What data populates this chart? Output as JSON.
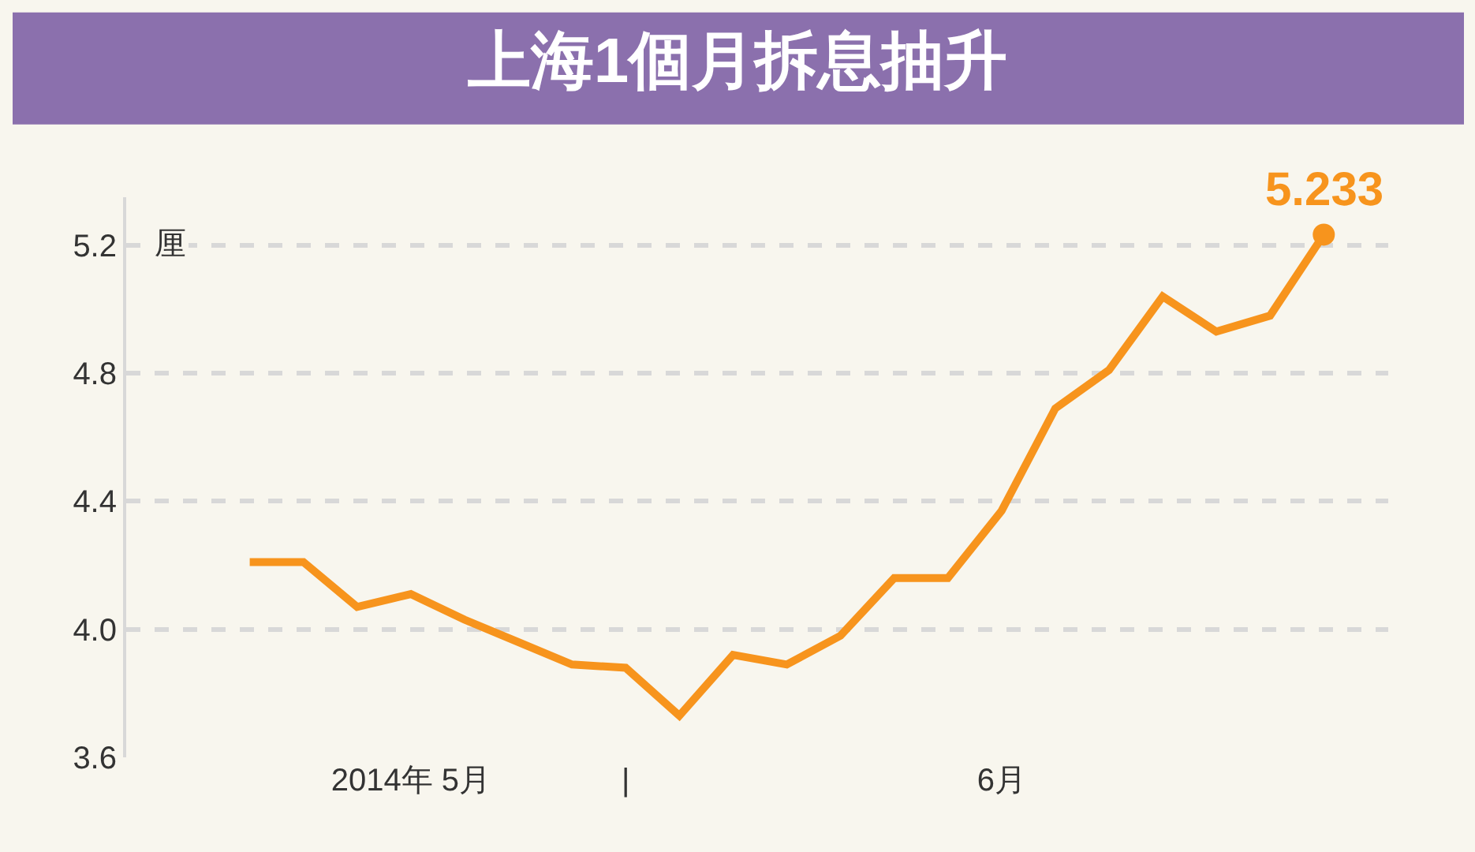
{
  "chart_data": {
    "type": "line",
    "title": "上海1個月拆息抽升",
    "ylabel": "厘",
    "categories": [
      null,
      null,
      null,
      "2014年 5月",
      null,
      null,
      null,
      "|",
      null,
      null,
      null,
      null,
      null,
      null,
      "6月",
      null,
      null,
      null,
      null,
      null,
      null
    ],
    "series": [
      {
        "color": "#f7941d",
        "values": [
          4.21,
          4.21,
          4.07,
          4.11,
          4.03,
          3.96,
          3.89,
          3.88,
          3.73,
          3.92,
          3.89,
          3.98,
          4.16,
          4.16,
          4.37,
          4.69,
          4.81,
          5.04,
          4.93,
          4.98,
          5.233
        ],
        "value_labels": [
          null,
          null,
          null,
          null,
          null,
          null,
          null,
          null,
          null,
          null,
          null,
          null,
          null,
          null,
          null,
          null,
          null,
          null,
          null,
          null,
          "5.233"
        ]
      }
    ],
    "ylim": [
      3.6,
      5.35
    ],
    "yticks": [
      {
        "value": 3.6,
        "label": "3.6"
      },
      {
        "value": 4.0,
        "label": "4.0"
      },
      {
        "value": 4.4,
        "label": "4.4"
      },
      {
        "value": 4.8,
        "label": "4.8"
      },
      {
        "value": 5.2,
        "label": "5.2"
      }
    ],
    "grid": "y"
  }
}
